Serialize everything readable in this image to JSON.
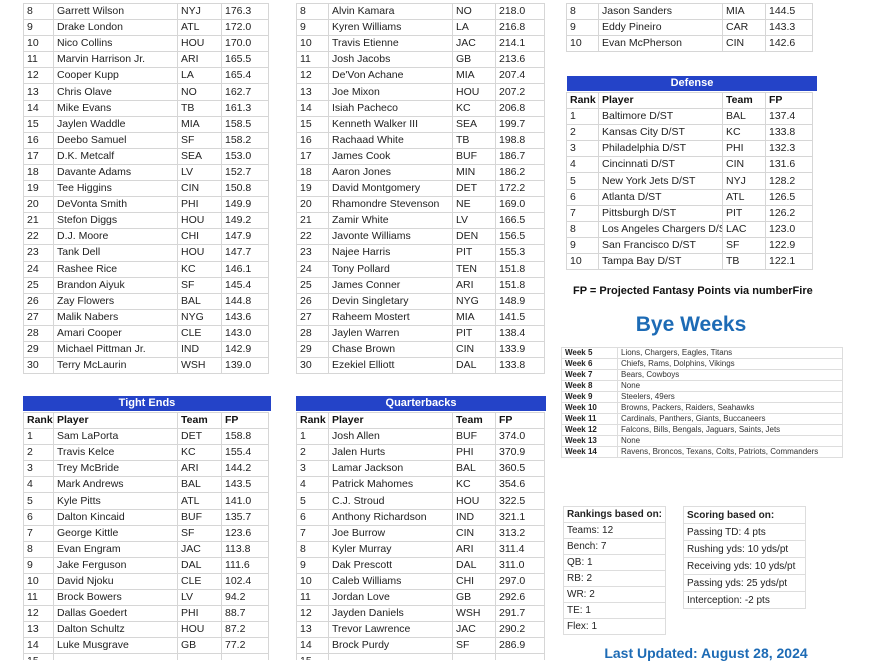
{
  "colors": {
    "banner": "#2443c8",
    "accent": "#1d6bb5"
  },
  "columns": [
    "Rank",
    "Player",
    "Team",
    "FP"
  ],
  "wide_receivers": {
    "rows": [
      [
        "8",
        "Garrett Wilson",
        "NYJ",
        "176.3"
      ],
      [
        "9",
        "Drake London",
        "ATL",
        "172.0"
      ],
      [
        "10",
        "Nico Collins",
        "HOU",
        "170.0"
      ],
      [
        "11",
        "Marvin Harrison Jr.",
        "ARI",
        "165.5"
      ],
      [
        "12",
        "Cooper Kupp",
        "LA",
        "165.4"
      ],
      [
        "13",
        "Chris Olave",
        "NO",
        "162.7"
      ],
      [
        "14",
        "Mike Evans",
        "TB",
        "161.3"
      ],
      [
        "15",
        "Jaylen Waddle",
        "MIA",
        "158.5"
      ],
      [
        "16",
        "Deebo Samuel",
        "SF",
        "158.2"
      ],
      [
        "17",
        "D.K. Metcalf",
        "SEA",
        "153.0"
      ],
      [
        "18",
        "Davante Adams",
        "LV",
        "152.7"
      ],
      [
        "19",
        "Tee Higgins",
        "CIN",
        "150.8"
      ],
      [
        "20",
        "DeVonta Smith",
        "PHI",
        "149.9"
      ],
      [
        "21",
        "Stefon Diggs",
        "HOU",
        "149.2"
      ],
      [
        "22",
        "D.J. Moore",
        "CHI",
        "147.9"
      ],
      [
        "23",
        "Tank Dell",
        "HOU",
        "147.7"
      ],
      [
        "24",
        "Rashee Rice",
        "KC",
        "146.1"
      ],
      [
        "25",
        "Brandon Aiyuk",
        "SF",
        "145.4"
      ],
      [
        "26",
        "Zay Flowers",
        "BAL",
        "144.8"
      ],
      [
        "27",
        "Malik Nabers",
        "NYG",
        "143.6"
      ],
      [
        "28",
        "Amari Cooper",
        "CLE",
        "143.0"
      ],
      [
        "29",
        "Michael Pittman Jr.",
        "IND",
        "142.9"
      ],
      [
        "30",
        "Terry McLaurin",
        "WSH",
        "139.0"
      ]
    ]
  },
  "running_backs": {
    "rows": [
      [
        "8",
        "Alvin Kamara",
        "NO",
        "218.0"
      ],
      [
        "9",
        "Kyren Williams",
        "LA",
        "216.8"
      ],
      [
        "10",
        "Travis Etienne",
        "JAC",
        "214.1"
      ],
      [
        "11",
        "Josh Jacobs",
        "GB",
        "213.6"
      ],
      [
        "12",
        "De'Von Achane",
        "MIA",
        "207.4"
      ],
      [
        "13",
        "Joe Mixon",
        "HOU",
        "207.2"
      ],
      [
        "14",
        "Isiah Pacheco",
        "KC",
        "206.8"
      ],
      [
        "15",
        "Kenneth Walker III",
        "SEA",
        "199.7"
      ],
      [
        "16",
        "Rachaad White",
        "TB",
        "198.8"
      ],
      [
        "17",
        "James Cook",
        "BUF",
        "186.7"
      ],
      [
        "18",
        "Aaron Jones",
        "MIN",
        "186.2"
      ],
      [
        "19",
        "David Montgomery",
        "DET",
        "172.2"
      ],
      [
        "20",
        "Rhamondre Stevenson",
        "NE",
        "169.0"
      ],
      [
        "21",
        "Zamir White",
        "LV",
        "166.5"
      ],
      [
        "22",
        "Javonte Williams",
        "DEN",
        "156.5"
      ],
      [
        "23",
        "Najee Harris",
        "PIT",
        "155.3"
      ],
      [
        "24",
        "Tony Pollard",
        "TEN",
        "151.8"
      ],
      [
        "25",
        "James Conner",
        "ARI",
        "151.8"
      ],
      [
        "26",
        "Devin Singletary",
        "NYG",
        "148.9"
      ],
      [
        "27",
        "Raheem Mostert",
        "MIA",
        "141.5"
      ],
      [
        "28",
        "Jaylen Warren",
        "PIT",
        "138.4"
      ],
      [
        "29",
        "Chase Brown",
        "CIN",
        "133.9"
      ],
      [
        "30",
        "Ezekiel Elliott",
        "DAL",
        "133.8"
      ]
    ]
  },
  "kickers": {
    "rows": [
      [
        "8",
        "Jason Sanders",
        "MIA",
        "144.5"
      ],
      [
        "9",
        "Eddy Pineiro",
        "CAR",
        "143.3"
      ],
      [
        "10",
        "Evan McPherson",
        "CIN",
        "142.6"
      ]
    ]
  },
  "defense": {
    "title": "Defense",
    "rows": [
      [
        "1",
        "Baltimore D/ST",
        "BAL",
        "137.4"
      ],
      [
        "2",
        "Kansas City D/ST",
        "KC",
        "133.8"
      ],
      [
        "3",
        "Philadelphia D/ST",
        "PHI",
        "132.3"
      ],
      [
        "4",
        "Cincinnati D/ST",
        "CIN",
        "131.6"
      ],
      [
        "5",
        "New York Jets D/ST",
        "NYJ",
        "128.2"
      ],
      [
        "6",
        "Atlanta D/ST",
        "ATL",
        "126.5"
      ],
      [
        "7",
        "Pittsburgh D/ST",
        "PIT",
        "126.2"
      ],
      [
        "8",
        "Los Angeles Chargers D/ST",
        "LAC",
        "123.0"
      ],
      [
        "9",
        "San Francisco D/ST",
        "SF",
        "122.9"
      ],
      [
        "10",
        "Tampa Bay D/ST",
        "TB",
        "122.1"
      ]
    ]
  },
  "tight_ends": {
    "title": "Tight Ends",
    "rows": [
      [
        "1",
        "Sam LaPorta",
        "DET",
        "158.8"
      ],
      [
        "2",
        "Travis Kelce",
        "KC",
        "155.4"
      ],
      [
        "3",
        "Trey McBride",
        "ARI",
        "144.2"
      ],
      [
        "4",
        "Mark Andrews",
        "BAL",
        "143.5"
      ],
      [
        "5",
        "Kyle Pitts",
        "ATL",
        "141.0"
      ],
      [
        "6",
        "Dalton Kincaid",
        "BUF",
        "135.7"
      ],
      [
        "7",
        "George Kittle",
        "SF",
        "123.6"
      ],
      [
        "8",
        "Evan Engram",
        "JAC",
        "113.8"
      ],
      [
        "9",
        "Jake Ferguson",
        "DAL",
        "111.6"
      ],
      [
        "10",
        "David Njoku",
        "CLE",
        "102.4"
      ],
      [
        "11",
        "Brock Bowers",
        "LV",
        "94.2"
      ],
      [
        "12",
        "Dallas Goedert",
        "PHI",
        "88.7"
      ],
      [
        "13",
        "Dalton Schultz",
        "HOU",
        "87.2"
      ],
      [
        "14",
        "Luke Musgrave",
        "GB",
        "77.2"
      ],
      [
        "15",
        "",
        "",
        ""
      ]
    ]
  },
  "quarterbacks": {
    "title": "Quarterbacks",
    "rows": [
      [
        "1",
        "Josh Allen",
        "BUF",
        "374.0"
      ],
      [
        "2",
        "Jalen Hurts",
        "PHI",
        "370.9"
      ],
      [
        "3",
        "Lamar Jackson",
        "BAL",
        "360.5"
      ],
      [
        "4",
        "Patrick Mahomes",
        "KC",
        "354.6"
      ],
      [
        "5",
        "C.J. Stroud",
        "HOU",
        "322.5"
      ],
      [
        "6",
        "Anthony Richardson",
        "IND",
        "321.1"
      ],
      [
        "7",
        "Joe Burrow",
        "CIN",
        "313.2"
      ],
      [
        "8",
        "Kyler Murray",
        "ARI",
        "311.4"
      ],
      [
        "9",
        "Dak Prescott",
        "DAL",
        "311.0"
      ],
      [
        "10",
        "Caleb Williams",
        "CHI",
        "297.0"
      ],
      [
        "11",
        "Jordan Love",
        "GB",
        "292.6"
      ],
      [
        "12",
        "Jayden Daniels",
        "WSH",
        "291.7"
      ],
      [
        "13",
        "Trevor Lawrence",
        "JAC",
        "290.2"
      ],
      [
        "14",
        "Brock Purdy",
        "SF",
        "286.9"
      ],
      [
        "15",
        "",
        "",
        ""
      ]
    ]
  },
  "fp_note": "FP = Projected Fantasy Points via numberFire",
  "bye_weeks": {
    "title": "Bye Weeks",
    "rows": [
      [
        "Week 5",
        "Lions, Chargers, Eagles, Titans"
      ],
      [
        "Week 6",
        "Chiefs, Rams, Dolphins, Vikings"
      ],
      [
        "Week 7",
        "Bears, Cowboys"
      ],
      [
        "Week 8",
        "None"
      ],
      [
        "Week 9",
        "Steelers, 49ers"
      ],
      [
        "Week 10",
        "Browns, Packers, Raiders, Seahawks"
      ],
      [
        "Week 11",
        "Cardinals, Panthers, Giants, Buccaneers"
      ],
      [
        "Week 12",
        "Falcons, Bills, Bengals, Jaguars, Saints, Jets"
      ],
      [
        "Week 13",
        "None"
      ],
      [
        "Week 14",
        "Ravens, Broncos, Texans, Colts, Patriots, Commanders"
      ]
    ]
  },
  "rankings_based_on": {
    "title": "Rankings based on:",
    "items": [
      "Teams: 12",
      "Bench: 7",
      "QB: 1",
      "RB: 2",
      "WR: 2",
      "TE: 1",
      "Flex: 1"
    ]
  },
  "scoring_based_on": {
    "title": "Scoring based on:",
    "items": [
      "Passing TD: 4 pts",
      "Rushing yds: 10 yds/pt",
      "Receiving yds: 10 yds/pt",
      "Passing yds: 25 yds/pt",
      "Interception: -2 pts"
    ]
  },
  "last_updated": "Last Updated: August 28, 2024"
}
